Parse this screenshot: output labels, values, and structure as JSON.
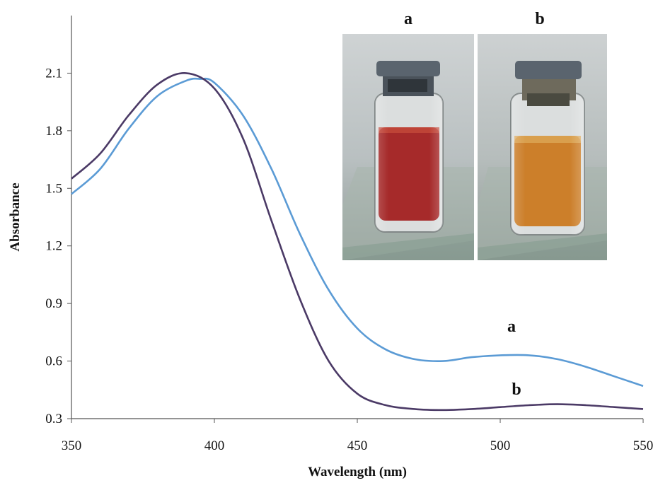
{
  "chart_data": {
    "type": "line",
    "xlabel": "Wavelength (nm)",
    "ylabel": "Absorbance",
    "xlim": [
      350,
      550
    ],
    "ylim": [
      0.3,
      2.4
    ],
    "xticks": [
      "350",
      "400",
      "450",
      "500",
      "550"
    ],
    "yticks": [
      "0.3",
      "0.6",
      "0.9",
      "1.2",
      "1.5",
      "1.8",
      "2.1"
    ],
    "grid": false,
    "series": [
      {
        "name": "a",
        "color": "#5b9bd5",
        "x": [
          350,
          360,
          370,
          380,
          390,
          395,
          400,
          410,
          420,
          430,
          440,
          450,
          460,
          470,
          480,
          490,
          500,
          510,
          520,
          530,
          540,
          550
        ],
        "y": [
          1.47,
          1.6,
          1.81,
          1.98,
          2.06,
          2.07,
          2.05,
          1.88,
          1.6,
          1.26,
          0.97,
          0.77,
          0.66,
          0.61,
          0.6,
          0.62,
          0.63,
          0.63,
          0.61,
          0.57,
          0.52,
          0.47
        ]
      },
      {
        "name": "b",
        "color": "#4b3a66",
        "x": [
          350,
          360,
          370,
          380,
          390,
          400,
          410,
          420,
          430,
          440,
          450,
          460,
          470,
          480,
          490,
          500,
          510,
          520,
          530,
          540,
          550
        ],
        "y": [
          1.55,
          1.68,
          1.88,
          2.04,
          2.1,
          2.02,
          1.76,
          1.33,
          0.92,
          0.6,
          0.43,
          0.37,
          0.35,
          0.345,
          0.35,
          0.36,
          0.37,
          0.375,
          0.37,
          0.36,
          0.35
        ]
      }
    ],
    "inset_photos": [
      {
        "label": "a",
        "liquid_color": "#a11f1f"
      },
      {
        "label": "b",
        "liquid_color": "#c9781f"
      }
    ]
  }
}
